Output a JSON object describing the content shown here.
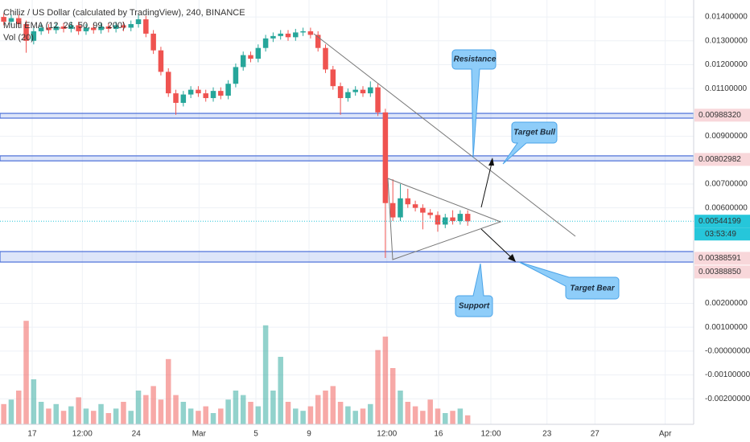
{
  "chart_data": {
    "type": "candlestick",
    "title": "Chiliz / US Dollar (calculated by TradingView), 240, BINANCE",
    "indicators": [
      "Multi EMA (12, 26, 50, 99, 200)",
      "Vol (20)"
    ],
    "up_color": "#26a69a",
    "down_color": "#ef5350",
    "open": [
      0.014,
      0.0138,
      0.01395,
      0.0137,
      0.013,
      0.0134,
      0.01355,
      0.01345,
      0.0136,
      0.0135,
      0.01365,
      0.0134,
      0.01355,
      0.01345,
      0.0136,
      0.0135,
      0.01365,
      0.01355,
      0.0137,
      0.0139,
      0.0133,
      0.0126,
      0.0117,
      0.0108,
      0.0104,
      0.01075,
      0.01095,
      0.0108,
      0.0106,
      0.0109,
      0.0107,
      0.0112,
      0.0119,
      0.0124,
      0.01225,
      0.0127,
      0.0131,
      0.0132,
      0.0133,
      0.01315,
      0.01335,
      0.0134,
      0.01325,
      0.0127,
      0.0118,
      0.0111,
      0.0106,
      0.01085,
      0.01095,
      0.0108,
      0.01105,
      0.01,
      0.0062,
      0.0056,
      0.0064,
      0.00615,
      0.006,
      0.0058,
      0.0057,
      0.0053,
      0.0056,
      0.00545,
      0.00575
    ],
    "high": [
      0.01415,
      0.0141,
      0.0141,
      0.01385,
      0.01355,
      0.0137,
      0.0137,
      0.01375,
      0.01375,
      0.0138,
      0.0138,
      0.0137,
      0.0137,
      0.01375,
      0.01375,
      0.0138,
      0.0138,
      0.01385,
      0.0141,
      0.01405,
      0.01345,
      0.01275,
      0.01185,
      0.01095,
      0.0109,
      0.0111,
      0.0111,
      0.01095,
      0.01105,
      0.01105,
      0.01135,
      0.01205,
      0.01255,
      0.01255,
      0.01285,
      0.01325,
      0.01335,
      0.01345,
      0.01345,
      0.0135,
      0.01355,
      0.01355,
      0.0134,
      0.01285,
      0.01195,
      0.01125,
      0.011,
      0.0111,
      0.0111,
      0.0113,
      0.0112,
      0.01015,
      0.0072,
      0.007,
      0.0068,
      0.0063,
      0.00615,
      0.00595,
      0.00585,
      0.00575,
      0.0059,
      0.0059,
      0.0059
    ],
    "low": [
      0.01365,
      0.01365,
      0.01355,
      0.0125,
      0.01285,
      0.01325,
      0.0133,
      0.0133,
      0.01335,
      0.01335,
      0.01325,
      0.01325,
      0.0133,
      0.0133,
      0.01335,
      0.01335,
      0.0134,
      0.0134,
      0.01355,
      0.01315,
      0.01245,
      0.01155,
      0.01065,
      0.0099,
      0.01025,
      0.0106,
      0.01065,
      0.01045,
      0.01045,
      0.01055,
      0.01055,
      0.01105,
      0.01175,
      0.0121,
      0.0121,
      0.01255,
      0.01295,
      0.01305,
      0.013,
      0.013,
      0.0132,
      0.0131,
      0.01255,
      0.01165,
      0.01095,
      0.0099,
      0.01045,
      0.0107,
      0.01065,
      0.01065,
      0.00985,
      0.0039,
      0.00545,
      0.00545,
      0.006,
      0.00585,
      0.0051,
      0.00555,
      0.005,
      0.00515,
      0.0053,
      0.0053,
      0.00525
    ],
    "close": [
      0.0138,
      0.01395,
      0.0137,
      0.013,
      0.0134,
      0.01355,
      0.01345,
      0.0136,
      0.0135,
      0.01365,
      0.0134,
      0.01355,
      0.01345,
      0.0136,
      0.0135,
      0.01365,
      0.01355,
      0.0137,
      0.0139,
      0.0133,
      0.0126,
      0.0117,
      0.0108,
      0.0104,
      0.01075,
      0.01095,
      0.0108,
      0.0106,
      0.0109,
      0.0107,
      0.0112,
      0.0119,
      0.0124,
      0.01225,
      0.0127,
      0.0131,
      0.0132,
      0.0133,
      0.01315,
      0.01335,
      0.0134,
      0.01325,
      0.0127,
      0.0118,
      0.0111,
      0.0106,
      0.01085,
      0.01095,
      0.0108,
      0.01105,
      0.01,
      0.0062,
      0.0056,
      0.0064,
      0.00615,
      0.006,
      0.0058,
      0.0057,
      0.0053,
      0.0056,
      0.00545,
      0.00575,
      0.00544
    ],
    "volume": [
      18,
      22,
      30,
      92,
      40,
      20,
      14,
      18,
      12,
      16,
      24,
      14,
      12,
      18,
      10,
      14,
      20,
      12,
      30,
      26,
      34,
      22,
      58,
      26,
      20,
      14,
      12,
      16,
      10,
      14,
      22,
      30,
      26,
      20,
      16,
      88,
      30,
      60,
      20,
      14,
      12,
      16,
      26,
      30,
      34,
      20,
      16,
      12,
      14,
      18,
      66,
      78,
      50,
      30,
      20,
      16,
      12,
      22,
      14,
      10,
      12,
      14,
      8
    ],
    "xlim": [
      -0.5,
      92.2
    ],
    "xticks": [
      {
        "value": 3.8,
        "label": "17"
      },
      {
        "value": 10.5,
        "label": "12:00"
      },
      {
        "value": 17.7,
        "label": "24"
      },
      {
        "value": 26.1,
        "label": "Mar"
      },
      {
        "value": 33.7,
        "label": "5"
      },
      {
        "value": 40.8,
        "label": "9"
      },
      {
        "value": 51.2,
        "label": "12:00"
      },
      {
        "value": 58.1,
        "label": "16"
      },
      {
        "value": 65.1,
        "label": "12:00"
      },
      {
        "value": 72.6,
        "label": "23"
      },
      {
        "value": 79.0,
        "label": "27"
      },
      {
        "value": 88.4,
        "label": "Apr"
      }
    ],
    "ylim": [
      -0.00307,
      0.01471
    ],
    "yticks": [
      {
        "value": 0.014,
        "label": "0.01400000"
      },
      {
        "value": 0.013,
        "label": "0.01300000"
      },
      {
        "value": 0.012,
        "label": "0.01200000"
      },
      {
        "value": 0.011,
        "label": "0.01100000"
      },
      {
        "value": 0.009,
        "label": "0.00900000"
      },
      {
        "value": 0.007,
        "label": "0.00700000"
      },
      {
        "value": 0.006,
        "label": "0.00600000"
      },
      {
        "value": 0.002,
        "label": "0.00200000"
      },
      {
        "value": 0.001,
        "label": "0.00100000"
      },
      {
        "value": 0,
        "label": "-0.00000000"
      },
      {
        "value": -0.001,
        "label": "-0.00100000"
      },
      {
        "value": -0.002,
        "label": "-0.00200000"
      }
    ],
    "grid": true,
    "price_labels": [
      {
        "value": 0.0098832,
        "label": "0.00988320",
        "color": "#f8d7da"
      },
      {
        "value": 0.00802982,
        "label": "0.00802982",
        "color": "#f8d7da"
      },
      {
        "value": 0.00544199,
        "label": "0.00544199",
        "color": "#26c6da"
      },
      {
        "value": 0.00388591,
        "label": "0.00388591",
        "color": "#f8d7da"
      },
      {
        "value": 0.0038885,
        "label": "0.00388850",
        "color": "#f8d7da"
      }
    ],
    "countdown": "03:53:49",
    "zones": [
      {
        "low": 0.00976,
        "high": 0.00996
      },
      {
        "low": 0.00797,
        "high": 0.00818
      },
      {
        "low": 0.00373,
        "high": 0.00417
      }
    ],
    "annotations": [
      "Resistance",
      "Target Bull",
      "Support",
      "Target Bear"
    ]
  }
}
